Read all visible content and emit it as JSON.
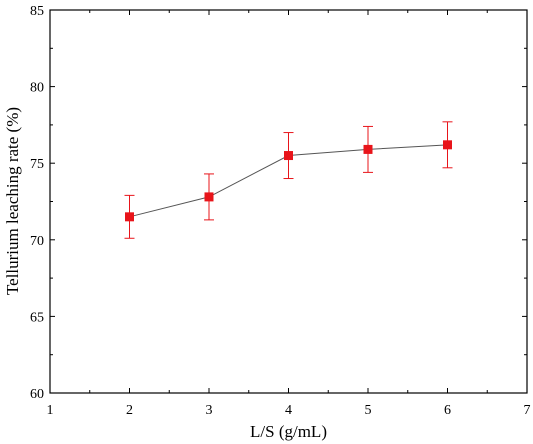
{
  "chart_data": {
    "type": "line",
    "title": "",
    "xlabel": "L/S (g/mL)",
    "ylabel": "Tellurium leaching rate (%)",
    "xlim": [
      1,
      7
    ],
    "ylim": [
      60,
      85
    ],
    "xticks": [
      "1",
      "2",
      "3",
      "4",
      "5",
      "6",
      "7"
    ],
    "yticks": [
      "60",
      "65",
      "70",
      "75",
      "80",
      "85"
    ],
    "grid": false,
    "legend": "none",
    "series": [
      {
        "x": [
          2,
          3,
          4,
          5,
          6
        ],
        "y": [
          71.5,
          72.8,
          75.5,
          75.9,
          76.2
        ],
        "error": [
          1.4,
          1.5,
          1.5,
          1.5,
          1.5
        ],
        "marker": "square",
        "marker_color": "#e8141a",
        "error_color": "#e8141a",
        "line_color": "#555555"
      }
    ]
  }
}
